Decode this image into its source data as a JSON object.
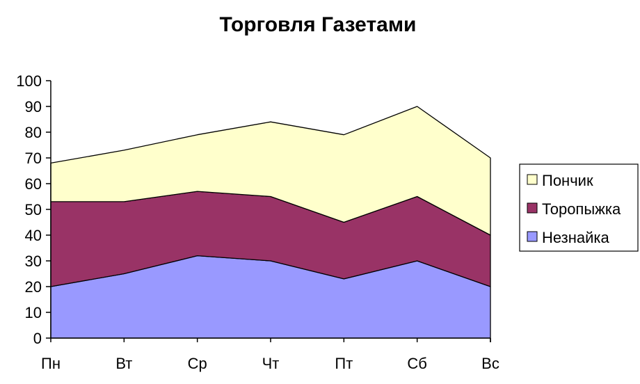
{
  "chart_data": {
    "type": "area",
    "stacked": true,
    "title": "Торговля Газетами",
    "xlabel": "",
    "ylabel": "",
    "categories": [
      "Пн",
      "Вт",
      "Ср",
      "Чт",
      "Пт",
      "Сб",
      "Вс"
    ],
    "ylim": [
      0,
      100
    ],
    "yticks": [
      0,
      10,
      20,
      30,
      40,
      50,
      60,
      70,
      80,
      90,
      100
    ],
    "grid": false,
    "legend_position": "right",
    "series": [
      {
        "name": "Незнайка",
        "values": [
          20,
          25,
          32,
          30,
          23,
          30,
          20
        ],
        "color": "#9999ff"
      },
      {
        "name": "Торопыжка",
        "values": [
          33,
          28,
          25,
          25,
          22,
          25,
          20
        ],
        "color": "#993366"
      },
      {
        "name": "Пончик",
        "values": [
          15,
          20,
          22,
          29,
          34,
          35,
          30
        ],
        "color": "#ffffcc"
      }
    ]
  }
}
